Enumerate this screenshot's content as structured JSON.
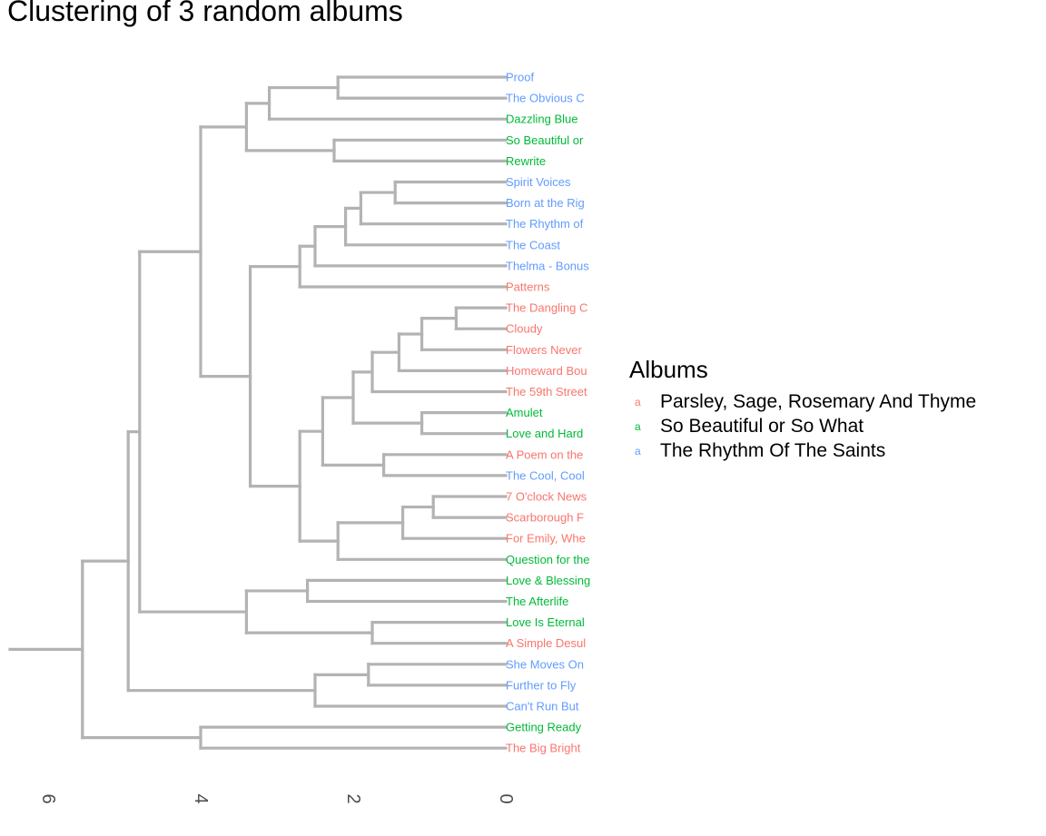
{
  "chart_data": {
    "type": "dendrogram",
    "title": "Clustering of 3 random albums",
    "xlabel": "",
    "ylabel": "",
    "x_ticks": [
      6,
      4,
      2,
      0
    ],
    "xlim": [
      6.5,
      0
    ],
    "legend": {
      "title": "Albums",
      "position": "right",
      "key_glyph": "a",
      "entries": [
        {
          "name": "Parsley, Sage, Rosemary And Thyme",
          "color": "#F8766D"
        },
        {
          "name": "So Beautiful or So What",
          "color": "#00BA38"
        },
        {
          "name": "The Rhythm Of The Saints",
          "color": "#619CFF"
        }
      ]
    },
    "leaves": [
      {
        "label": "Proof",
        "album": 2
      },
      {
        "label": "The Obvious C",
        "album": 2
      },
      {
        "label": "Dazzling Blue",
        "album": 1
      },
      {
        "label": "So Beautiful or",
        "album": 1
      },
      {
        "label": "Rewrite",
        "album": 1
      },
      {
        "label": "Spirit Voices",
        "album": 2
      },
      {
        "label": "Born at the Rig",
        "album": 2
      },
      {
        "label": "The Rhythm of",
        "album": 2
      },
      {
        "label": "The Coast",
        "album": 2
      },
      {
        "label": "Thelma - Bonus",
        "album": 2
      },
      {
        "label": "Patterns",
        "album": 0
      },
      {
        "label": "The Dangling C",
        "album": 0
      },
      {
        "label": "Cloudy",
        "album": 0
      },
      {
        "label": "Flowers Never",
        "album": 0
      },
      {
        "label": "Homeward Bou",
        "album": 0
      },
      {
        "label": "The 59th Street",
        "album": 0
      },
      {
        "label": "Amulet",
        "album": 1
      },
      {
        "label": "Love and Hard",
        "album": 1
      },
      {
        "label": "A Poem on the",
        "album": 0
      },
      {
        "label": "The Cool, Cool",
        "album": 2
      },
      {
        "label": "7 O'clock News",
        "album": 0
      },
      {
        "label": "Scarborough F",
        "album": 0
      },
      {
        "label": "For Emily, Whe",
        "album": 0
      },
      {
        "label": "Question for the",
        "album": 1
      },
      {
        "label": "Love & Blessing",
        "album": 1
      },
      {
        "label": "The Afterlife",
        "album": 1
      },
      {
        "label": "Love Is Eternal",
        "album": 1
      },
      {
        "label": "A Simple Desul",
        "album": 0
      },
      {
        "label": "She Moves On",
        "album": 2
      },
      {
        "label": "Further to Fly",
        "album": 2
      },
      {
        "label": "Can't Run But",
        "album": 2
      },
      {
        "label": "Getting Ready",
        "album": 1
      },
      {
        "label": "The Big Bright",
        "album": 0
      }
    ],
    "merges": [
      {
        "id": "m1",
        "children": [
          0,
          1
        ],
        "height": 2.2
      },
      {
        "id": "m2",
        "children": [
          "m1",
          2
        ],
        "height": 3.1
      },
      {
        "id": "m3",
        "children": [
          3,
          4
        ],
        "height": 2.25
      },
      {
        "id": "m4",
        "children": [
          "m2",
          "m3"
        ],
        "height": 3.4
      },
      {
        "id": "m5",
        "children": [
          5,
          6
        ],
        "height": 1.45
      },
      {
        "id": "m6",
        "children": [
          "m5",
          7
        ],
        "height": 1.9
      },
      {
        "id": "m7",
        "children": [
          "m6",
          8
        ],
        "height": 2.1
      },
      {
        "id": "m8",
        "children": [
          "m7",
          9
        ],
        "height": 2.5
      },
      {
        "id": "m9",
        "children": [
          "m8",
          10
        ],
        "height": 2.7
      },
      {
        "id": "m10",
        "children": [
          11,
          12
        ],
        "height": 0.65
      },
      {
        "id": "m11",
        "children": [
          "m10",
          13
        ],
        "height": 1.1
      },
      {
        "id": "m12",
        "children": [
          "m11",
          14
        ],
        "height": 1.4
      },
      {
        "id": "m13",
        "children": [
          "m12",
          15
        ],
        "height": 1.75
      },
      {
        "id": "m14",
        "children": [
          16,
          17
        ],
        "height": 1.1
      },
      {
        "id": "m15",
        "children": [
          "m13",
          "m14"
        ],
        "height": 2.0
      },
      {
        "id": "m16",
        "children": [
          18,
          19
        ],
        "height": 1.6
      },
      {
        "id": "m17",
        "children": [
          "m15",
          "m16"
        ],
        "height": 2.4
      },
      {
        "id": "m18",
        "children": [
          20,
          21
        ],
        "height": 0.95
      },
      {
        "id": "m19",
        "children": [
          "m18",
          22
        ],
        "height": 1.35
      },
      {
        "id": "m20",
        "children": [
          "m19",
          23
        ],
        "height": 2.2
      },
      {
        "id": "m21",
        "children": [
          "m17",
          "m20"
        ],
        "height": 2.7
      },
      {
        "id": "m22",
        "children": [
          "m9",
          "m21"
        ],
        "height": 3.35
      },
      {
        "id": "m23",
        "children": [
          "m4",
          "m22"
        ],
        "height": 4.0
      },
      {
        "id": "m24",
        "children": [
          24,
          25
        ],
        "height": 2.6
      },
      {
        "id": "m25",
        "children": [
          26,
          27
        ],
        "height": 1.75
      },
      {
        "id": "m26",
        "children": [
          "m24",
          "m25"
        ],
        "height": 3.4
      },
      {
        "id": "m27",
        "children": [
          "m23",
          "m26"
        ],
        "height": 4.8
      },
      {
        "id": "m28",
        "children": [
          28,
          29
        ],
        "height": 1.8
      },
      {
        "id": "m29",
        "children": [
          "m28",
          30
        ],
        "height": 2.5
      },
      {
        "id": "m30",
        "children": [
          "m27",
          "m29"
        ],
        "height": 4.95
      },
      {
        "id": "m31",
        "children": [
          31,
          32
        ],
        "height": 4.0
      },
      {
        "id": "m32",
        "children": [
          "m30",
          "m31"
        ],
        "height": 5.55
      }
    ]
  }
}
